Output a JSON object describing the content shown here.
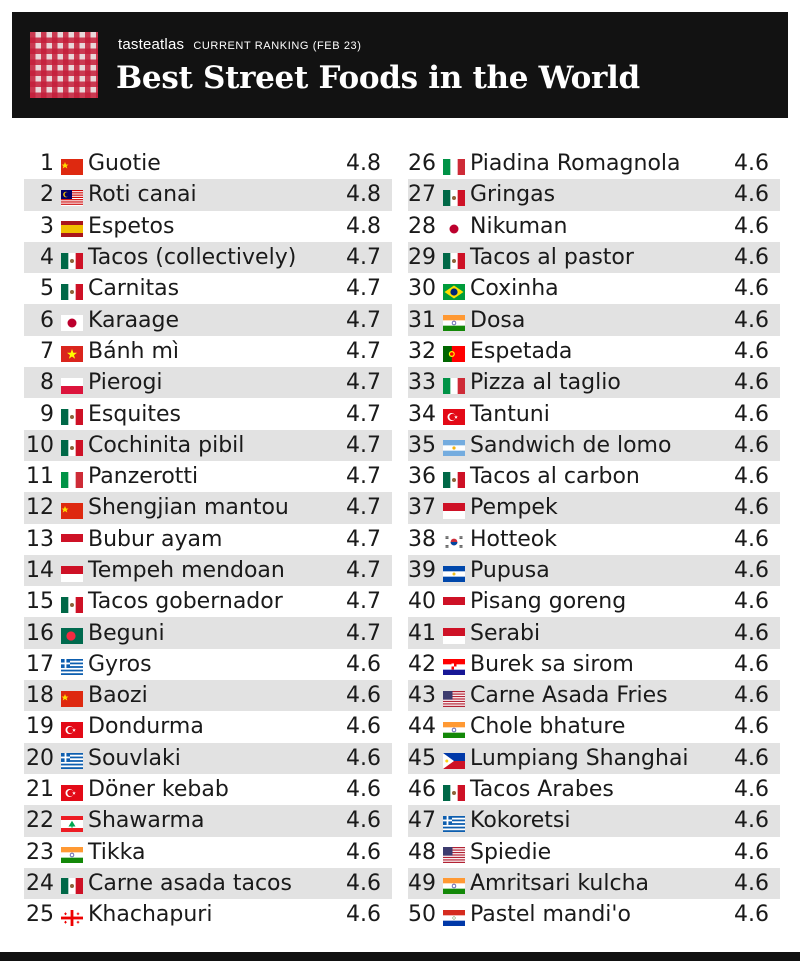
{
  "header": {
    "brand": "tasteatlas",
    "ranking_label": "CURRENT RANKING (FEB 23)",
    "title": "Best Street Foods in the World"
  },
  "items": [
    {
      "rank": "1",
      "name": "Guotie",
      "score": "4.8",
      "flag": "china"
    },
    {
      "rank": "2",
      "name": "Roti canai",
      "score": "4.8",
      "flag": "malaysia"
    },
    {
      "rank": "3",
      "name": "Espetos",
      "score": "4.8",
      "flag": "spain"
    },
    {
      "rank": "4",
      "name": "Tacos (collectively)",
      "score": "4.7",
      "flag": "mexico"
    },
    {
      "rank": "5",
      "name": "Carnitas",
      "score": "4.7",
      "flag": "mexico"
    },
    {
      "rank": "6",
      "name": "Karaage",
      "score": "4.7",
      "flag": "japan"
    },
    {
      "rank": "7",
      "name": "Bánh mì",
      "score": "4.7",
      "flag": "vietnam"
    },
    {
      "rank": "8",
      "name": "Pierogi",
      "score": "4.7",
      "flag": "poland"
    },
    {
      "rank": "9",
      "name": "Esquites",
      "score": "4.7",
      "flag": "mexico"
    },
    {
      "rank": "10",
      "name": "Cochinita pibil",
      "score": "4.7",
      "flag": "mexico"
    },
    {
      "rank": "11",
      "name": "Panzerotti",
      "score": "4.7",
      "flag": "italy"
    },
    {
      "rank": "12",
      "name": "Shengjian mantou",
      "score": "4.7",
      "flag": "china"
    },
    {
      "rank": "13",
      "name": "Bubur ayam",
      "score": "4.7",
      "flag": "indonesia"
    },
    {
      "rank": "14",
      "name": "Tempeh mendoan",
      "score": "4.7",
      "flag": "indonesia"
    },
    {
      "rank": "15",
      "name": "Tacos gobernador",
      "score": "4.7",
      "flag": "mexico"
    },
    {
      "rank": "16",
      "name": "Beguni",
      "score": "4.7",
      "flag": "bangladesh"
    },
    {
      "rank": "17",
      "name": "Gyros",
      "score": "4.6",
      "flag": "greece"
    },
    {
      "rank": "18",
      "name": "Baozi",
      "score": "4.6",
      "flag": "china"
    },
    {
      "rank": "19",
      "name": "Dondurma",
      "score": "4.6",
      "flag": "turkey"
    },
    {
      "rank": "20",
      "name": "Souvlaki",
      "score": "4.6",
      "flag": "greece"
    },
    {
      "rank": "21",
      "name": "Döner kebab",
      "score": "4.6",
      "flag": "turkey"
    },
    {
      "rank": "22",
      "name": "Shawarma",
      "score": "4.6",
      "flag": "lebanon"
    },
    {
      "rank": "23",
      "name": "Tikka",
      "score": "4.6",
      "flag": "india"
    },
    {
      "rank": "24",
      "name": "Carne asada tacos",
      "score": "4.6",
      "flag": "mexico"
    },
    {
      "rank": "25",
      "name": "Khachapuri",
      "score": "4.6",
      "flag": "georgia"
    },
    {
      "rank": "26",
      "name": "Piadina Romagnola",
      "score": "4.6",
      "flag": "italy"
    },
    {
      "rank": "27",
      "name": "Gringas",
      "score": "4.6",
      "flag": "mexico"
    },
    {
      "rank": "28",
      "name": "Nikuman",
      "score": "4.6",
      "flag": "japan"
    },
    {
      "rank": "29",
      "name": "Tacos al pastor",
      "score": "4.6",
      "flag": "mexico"
    },
    {
      "rank": "30",
      "name": "Coxinha",
      "score": "4.6",
      "flag": "brazil"
    },
    {
      "rank": "31",
      "name": "Dosa",
      "score": "4.6",
      "flag": "india"
    },
    {
      "rank": "32",
      "name": "Espetada",
      "score": "4.6",
      "flag": "portugal"
    },
    {
      "rank": "33",
      "name": "Pizza al taglio",
      "score": "4.6",
      "flag": "italy"
    },
    {
      "rank": "34",
      "name": "Tantuni",
      "score": "4.6",
      "flag": "turkey"
    },
    {
      "rank": "35",
      "name": "Sandwich de lomo",
      "score": "4.6",
      "flag": "argentina"
    },
    {
      "rank": "36",
      "name": "Tacos al carbon",
      "score": "4.6",
      "flag": "mexico"
    },
    {
      "rank": "37",
      "name": "Pempek",
      "score": "4.6",
      "flag": "indonesia"
    },
    {
      "rank": "38",
      "name": "Hotteok",
      "score": "4.6",
      "flag": "south-korea"
    },
    {
      "rank": "39",
      "name": "Pupusa",
      "score": "4.6",
      "flag": "el-salvador"
    },
    {
      "rank": "40",
      "name": "Pisang goreng",
      "score": "4.6",
      "flag": "indonesia"
    },
    {
      "rank": "41",
      "name": "Serabi",
      "score": "4.6",
      "flag": "indonesia"
    },
    {
      "rank": "42",
      "name": "Burek sa sirom",
      "score": "4.6",
      "flag": "croatia"
    },
    {
      "rank": "43",
      "name": "Carne Asada Fries",
      "score": "4.6",
      "flag": "usa"
    },
    {
      "rank": "44",
      "name": "Chole bhature",
      "score": "4.6",
      "flag": "india"
    },
    {
      "rank": "45",
      "name": "Lumpiang Shanghai",
      "score": "4.6",
      "flag": "philippines"
    },
    {
      "rank": "46",
      "name": "Tacos Arabes",
      "score": "4.6",
      "flag": "mexico"
    },
    {
      "rank": "47",
      "name": "Kokoretsi",
      "score": "4.6",
      "flag": "greece"
    },
    {
      "rank": "48",
      "name": "Spiedie",
      "score": "4.6",
      "flag": "usa"
    },
    {
      "rank": "49",
      "name": "Amritsari kulcha",
      "score": "4.6",
      "flag": "india"
    },
    {
      "rank": "50",
      "name": "Pastel mandi'o",
      "score": "4.6",
      "flag": "paraguay"
    }
  ]
}
